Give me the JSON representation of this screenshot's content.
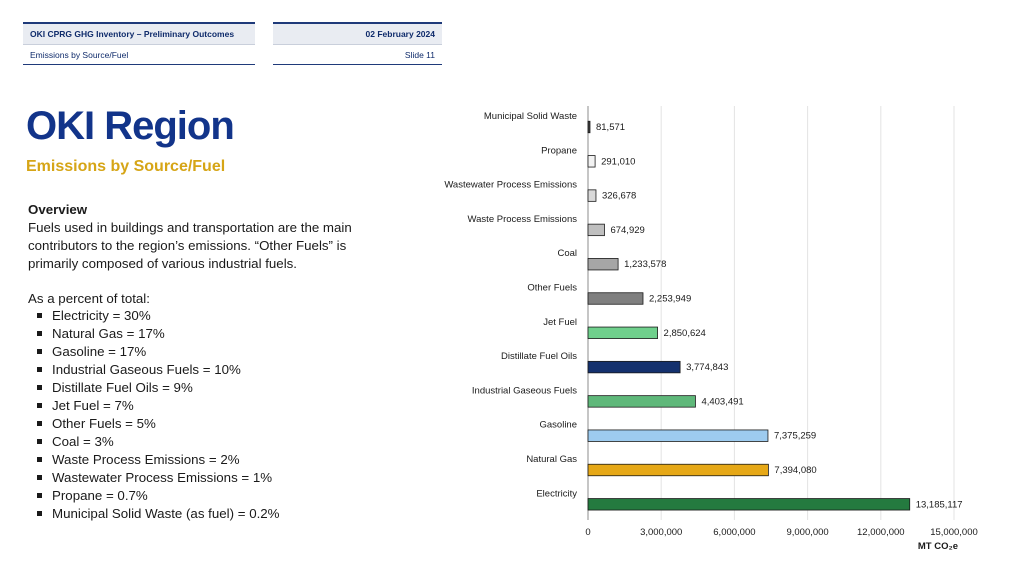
{
  "header": {
    "left_top": "OKI CPRG GHG Inventory – Preliminary Outcomes",
    "left_bottom": "Emissions by Source/Fuel",
    "right_top": "02 February 2024",
    "right_bottom": "Slide 11"
  },
  "title": "OKI Region",
  "subtitle": "Emissions by Source/Fuel",
  "overview": {
    "heading": "Overview",
    "text": "Fuels used in buildings and transportation are the main contributors to the region’s emissions. “Other Fuels” is primarily composed of various industrial fuels."
  },
  "percent_intro": "As a percent of total:",
  "percent_items": [
    "Electricity = 30%",
    "Natural Gas = 17%",
    "Gasoline = 17%",
    "Industrial Gaseous Fuels = 10%",
    "Distillate Fuel Oils = 9%",
    "Jet Fuel = 7%",
    "Other Fuels = 5%",
    "Coal = 3%",
    "Waste Process Emissions = 2%",
    "Wastewater Process Emissions = 1%",
    "Propane = 0.7%",
    "Municipal Solid Waste (as fuel) = 0.2%"
  ],
  "chart_data": {
    "type": "bar",
    "orientation": "horizontal",
    "categories": [
      "Municipal Solid Waste",
      "Propane",
      "Wastewater Process Emissions",
      "Waste Process Emissions",
      "Coal",
      "Other Fuels",
      "Jet Fuel",
      "Distillate Fuel Oils",
      "Industrial Gaseous Fuels",
      "Gasoline",
      "Natural Gas",
      "Electricity"
    ],
    "values": [
      81571,
      291010,
      326678,
      674929,
      1233578,
      2253949,
      2850624,
      3774843,
      4403491,
      7375259,
      7394080,
      13185117
    ],
    "value_labels": [
      "81,571",
      "291,010",
      "326,678",
      "674,929",
      "1,233,578",
      "2,253,949",
      "2,850,624",
      "3,774,843",
      "4,403,491",
      "7,375,259",
      "7,394,080",
      "13,185,117"
    ],
    "colors": [
      "#404040",
      "#f2f2f2",
      "#d9d9d9",
      "#bfbfbf",
      "#a6a6a6",
      "#7f7f7f",
      "#6fd08c",
      "#14316e",
      "#5fb87a",
      "#9dcbef",
      "#e6a817",
      "#247a3f"
    ],
    "xlim": [
      0,
      15000000
    ],
    "xticks": [
      "0",
      "3,000,000",
      "6,000,000",
      "9,000,000",
      "12,000,000",
      "15,000,000"
    ],
    "xlabel": "MT CO₂e",
    "grid": true
  }
}
